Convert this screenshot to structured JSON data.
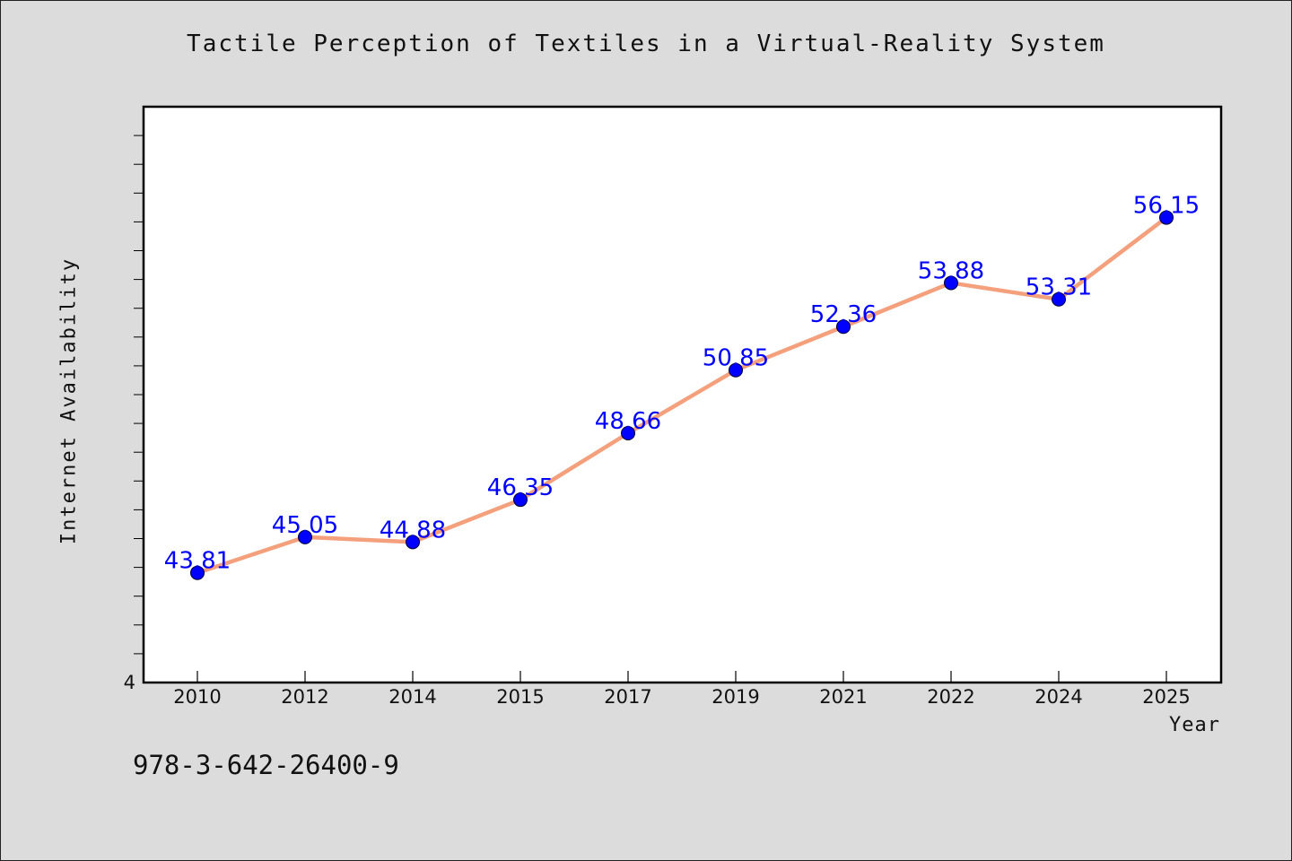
{
  "chart_data": {
    "type": "line",
    "title": "Tactile Perception of Textiles in a Virtual-Reality System",
    "xlabel": "Year",
    "ylabel": "Internet Availability",
    "categories": [
      "2010",
      "2012",
      "2014",
      "2015",
      "2017",
      "2019",
      "2021",
      "2022",
      "2024",
      "2025"
    ],
    "series": [
      {
        "values": [
          43.81,
          45.05,
          44.88,
          46.35,
          48.66,
          50.85,
          52.36,
          53.88,
          53.31,
          56.15
        ],
        "data_labels": [
          "43.81",
          "45.05",
          "44.88",
          "46.35",
          "48.66",
          "50.85",
          "52.36",
          "53.88",
          "53.31",
          "56.15"
        ]
      }
    ],
    "ylim": [
      40,
      60
    ],
    "y_tick_labels": [
      "4"
    ],
    "grid": false,
    "legend": "none",
    "colors": {
      "line": "#f4a07c",
      "marker": "#0000ff",
      "data_label": "#0000ff",
      "background": "#dcdcdc",
      "plot_background": "#ffffff"
    }
  },
  "footer": {
    "isbn": "978-3-642-26400-9"
  }
}
